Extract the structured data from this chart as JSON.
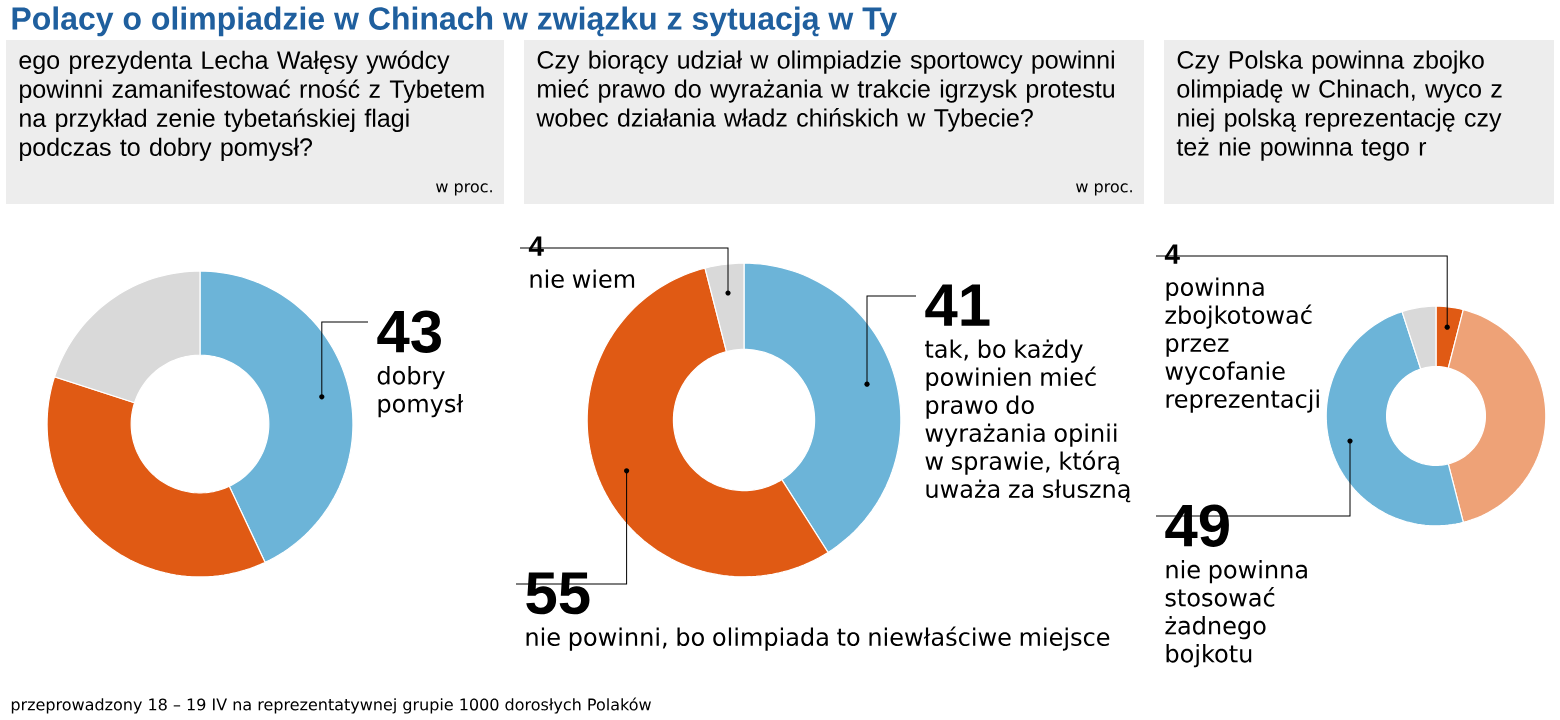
{
  "chart_data": [
    {
      "type": "donut",
      "title": "Polacy o olimpiadzie w Chinach w związku z sytuacją w Ty",
      "subtitle": "ego prezydenta Lecha Wałęsy ywódcy powinni zamanifestować rność z Tybetem na przykład zenie tybetańskiej flagi podczas to dobry pomysł?",
      "annotations": [
        "w proc.",
        "przeprowadzony 18 – 19 IV na reprezentatywnej grupie 1000 dorosłych Polaków"
      ],
      "categories": [
        "dobry pomysł",
        null,
        null
      ],
      "values": [
        43,
        37,
        20
      ],
      "value_labels": [
        "43",
        null,
        null
      ],
      "colors": [
        "#6cb4d8",
        "#e05a14",
        "#d9d9d9"
      ]
    },
    {
      "type": "donut",
      "subtitle": "Czy biorący udział w olimpiadzie sportowcy powinni mieć prawo do wyrażania w trakcie igrzysk protestu wobec działania władz chińskich w Tybecie?",
      "annotations": [
        "w proc."
      ],
      "categories": [
        "tak, bo każdy powinien mieć prawo do wyrażania opinii w sprawie, którą uważa za słuszną",
        "nie powinni, bo olimpiada to niewłaściwe miejsce",
        "nie wiem"
      ],
      "values": [
        41,
        55,
        4
      ],
      "value_labels": [
        "41",
        "55",
        "4"
      ],
      "colors": [
        "#6cb4d8",
        "#e05a14",
        "#d9d9d9"
      ]
    },
    {
      "type": "donut",
      "subtitle": "Czy Polska powinna zbojko olimpiadę w Chinach, wyco z niej polską reprezentację czy też nie powinna tego r",
      "categories": [
        "powinna zbojkotować przez wycofanie reprezentacji",
        null,
        "nie powinna stosować żadnego bojkotu",
        null
      ],
      "values": [
        4,
        42,
        49,
        5
      ],
      "value_labels": [
        "4",
        null,
        "49",
        null
      ],
      "colors": [
        "#e05a14",
        "#eea277",
        "#6cb4d8",
        "#d9d9d9"
      ]
    }
  ]
}
